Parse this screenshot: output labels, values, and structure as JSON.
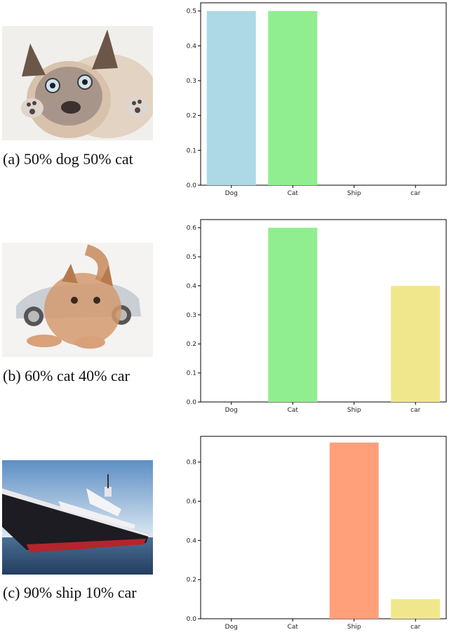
{
  "colors": {
    "Dog": "#add8e6",
    "Cat": "#90ee90",
    "Ship": "#ffa07a",
    "car": "#f0e68c"
  },
  "panels": [
    {
      "caption": "(a) 50% dog 50% cat",
      "image_icon": "cat-dog-blend-image",
      "chart_data": {
        "type": "bar",
        "categories": [
          "Dog",
          "Cat",
          "Ship",
          "car"
        ],
        "values": [
          0.5,
          0.5,
          0.0,
          0.0
        ],
        "title": "",
        "xlabel": "",
        "ylabel": "",
        "ylim": [
          0,
          0.5
        ],
        "yticks": [
          "0.0",
          "0.1",
          "0.2",
          "0.3",
          "0.4",
          "0.5"
        ],
        "grid": false
      }
    },
    {
      "caption": "(b) 60% cat 40% car",
      "image_icon": "cat-car-blend-image",
      "chart_data": {
        "type": "bar",
        "categories": [
          "Dog",
          "Cat",
          "Ship",
          "car"
        ],
        "values": [
          0.0,
          0.6,
          0.0,
          0.4
        ],
        "title": "",
        "xlabel": "",
        "ylabel": "",
        "ylim": [
          0,
          0.6
        ],
        "yticks": [
          "0.0",
          "0.1",
          "0.2",
          "0.3",
          "0.4",
          "0.5",
          "0.6"
        ],
        "grid": false
      }
    },
    {
      "caption": "(c) 90% ship 10% car",
      "image_icon": "ship-image",
      "chart_data": {
        "type": "bar",
        "categories": [
          "Dog",
          "Cat",
          "Ship",
          "car"
        ],
        "values": [
          0.0,
          0.0,
          0.9,
          0.1
        ],
        "title": "",
        "xlabel": "",
        "ylabel": "",
        "ylim": [
          0,
          0.9
        ],
        "yticks": [
          "0.0",
          "0.2",
          "0.4",
          "0.6",
          "0.8"
        ],
        "grid": false
      }
    }
  ]
}
